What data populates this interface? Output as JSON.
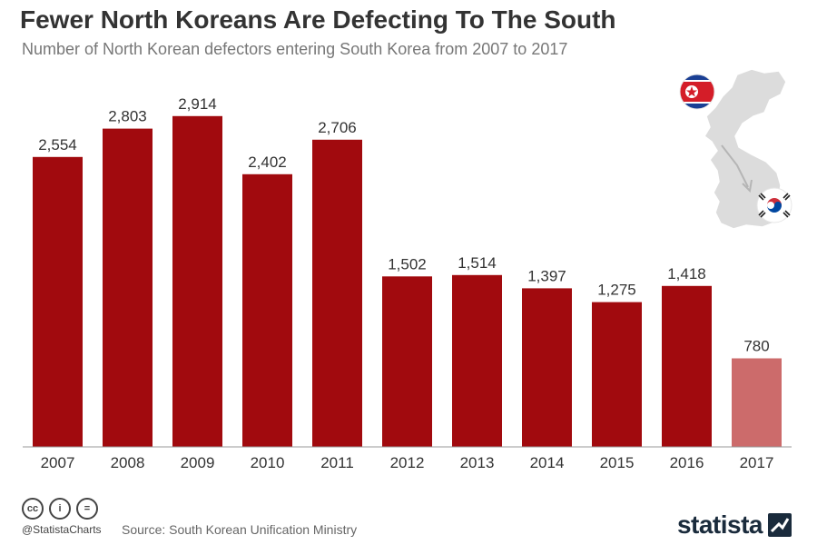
{
  "header": {
    "title": "Fewer North Koreans Are Defecting To The South",
    "subtitle": "Number of North Korean defectors entering South Korea from 2007 to 2017"
  },
  "chart_data": {
    "type": "bar",
    "categories": [
      "2007",
      "2008",
      "2009",
      "2010",
      "2011",
      "2012",
      "2013",
      "2014",
      "2015",
      "2016",
      "2017"
    ],
    "values": [
      2554,
      2803,
      2914,
      2402,
      2706,
      1502,
      1514,
      1397,
      1275,
      1418,
      780
    ],
    "value_labels": [
      "2,554",
      "2,803",
      "2,914",
      "2,402",
      "2,706",
      "1,502",
      "1,514",
      "1,397",
      "1,275",
      "1,418",
      "780"
    ],
    "ylim": [
      0,
      3200
    ],
    "grid": false,
    "colors": {
      "bar": "#a10a0e",
      "highlight": "#cc6b6b"
    },
    "highlight_category": "2017"
  },
  "decoration": {
    "map_icon": "korean-peninsula-map-icon",
    "north_flag_icon": "north-korea-flag-icon",
    "south_flag_icon": "south-korea-flag-icon"
  },
  "footer": {
    "handle": "@StatistaCharts",
    "source": "Source: South Korean Unification Ministry",
    "brand": "statista",
    "cc_icons": [
      "cc",
      "i",
      "="
    ]
  }
}
